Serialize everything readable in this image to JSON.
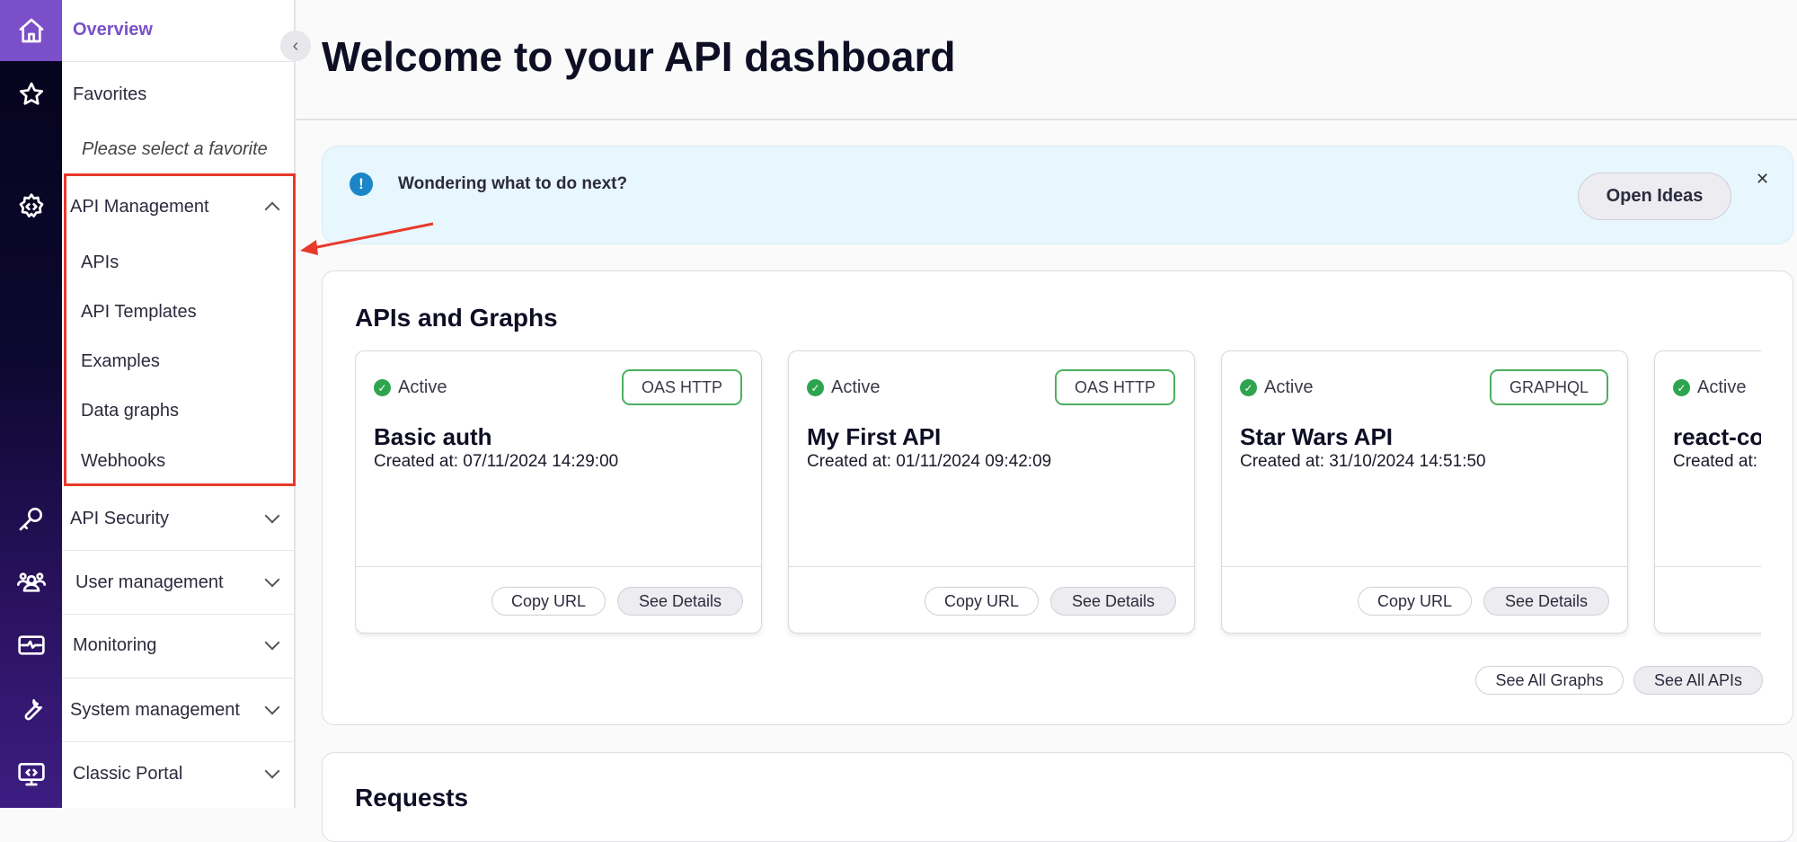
{
  "sidebar": {
    "overview": "Overview",
    "favorites": "Favorites",
    "favorites_placeholder": "Please select a favorite",
    "api_management": {
      "label": "API Management",
      "items": [
        "APIs",
        "API Templates",
        "Examples",
        "Data graphs",
        "Webhooks"
      ]
    },
    "sections": [
      "API Security",
      "User management",
      "Monitoring",
      "System management",
      "Classic Portal"
    ]
  },
  "header": {
    "title": "Welcome to your API dashboard"
  },
  "banner": {
    "text": "Wondering what to do next?",
    "button": "Open Ideas",
    "close": "✕"
  },
  "apis_panel": {
    "title": "APIs and Graphs",
    "cards": [
      {
        "status": "Active",
        "type": "OAS HTTP",
        "name": "Basic auth",
        "created": "Created at: 07/11/2024 14:29:00"
      },
      {
        "status": "Active",
        "type": "OAS HTTP",
        "name": "My First API",
        "created": "Created at: 01/11/2024 09:42:09"
      },
      {
        "status": "Active",
        "type": "GRAPHQL",
        "name": "Star Wars API",
        "created": "Created at: 31/10/2024 14:51:50"
      },
      {
        "status": "Active",
        "type": "",
        "name": "react-co",
        "created": "Created at:"
      }
    ],
    "copy_url": "Copy URL",
    "see_details": "See Details",
    "see_all_graphs": "See All Graphs",
    "see_all_apis": "See All APIs"
  },
  "requests_panel": {
    "title": "Requests"
  },
  "colors": {
    "accent": "#7b4fc9",
    "highlight": "#e8392b",
    "active": "#2ea44f",
    "banner": "#e8f6fd"
  }
}
